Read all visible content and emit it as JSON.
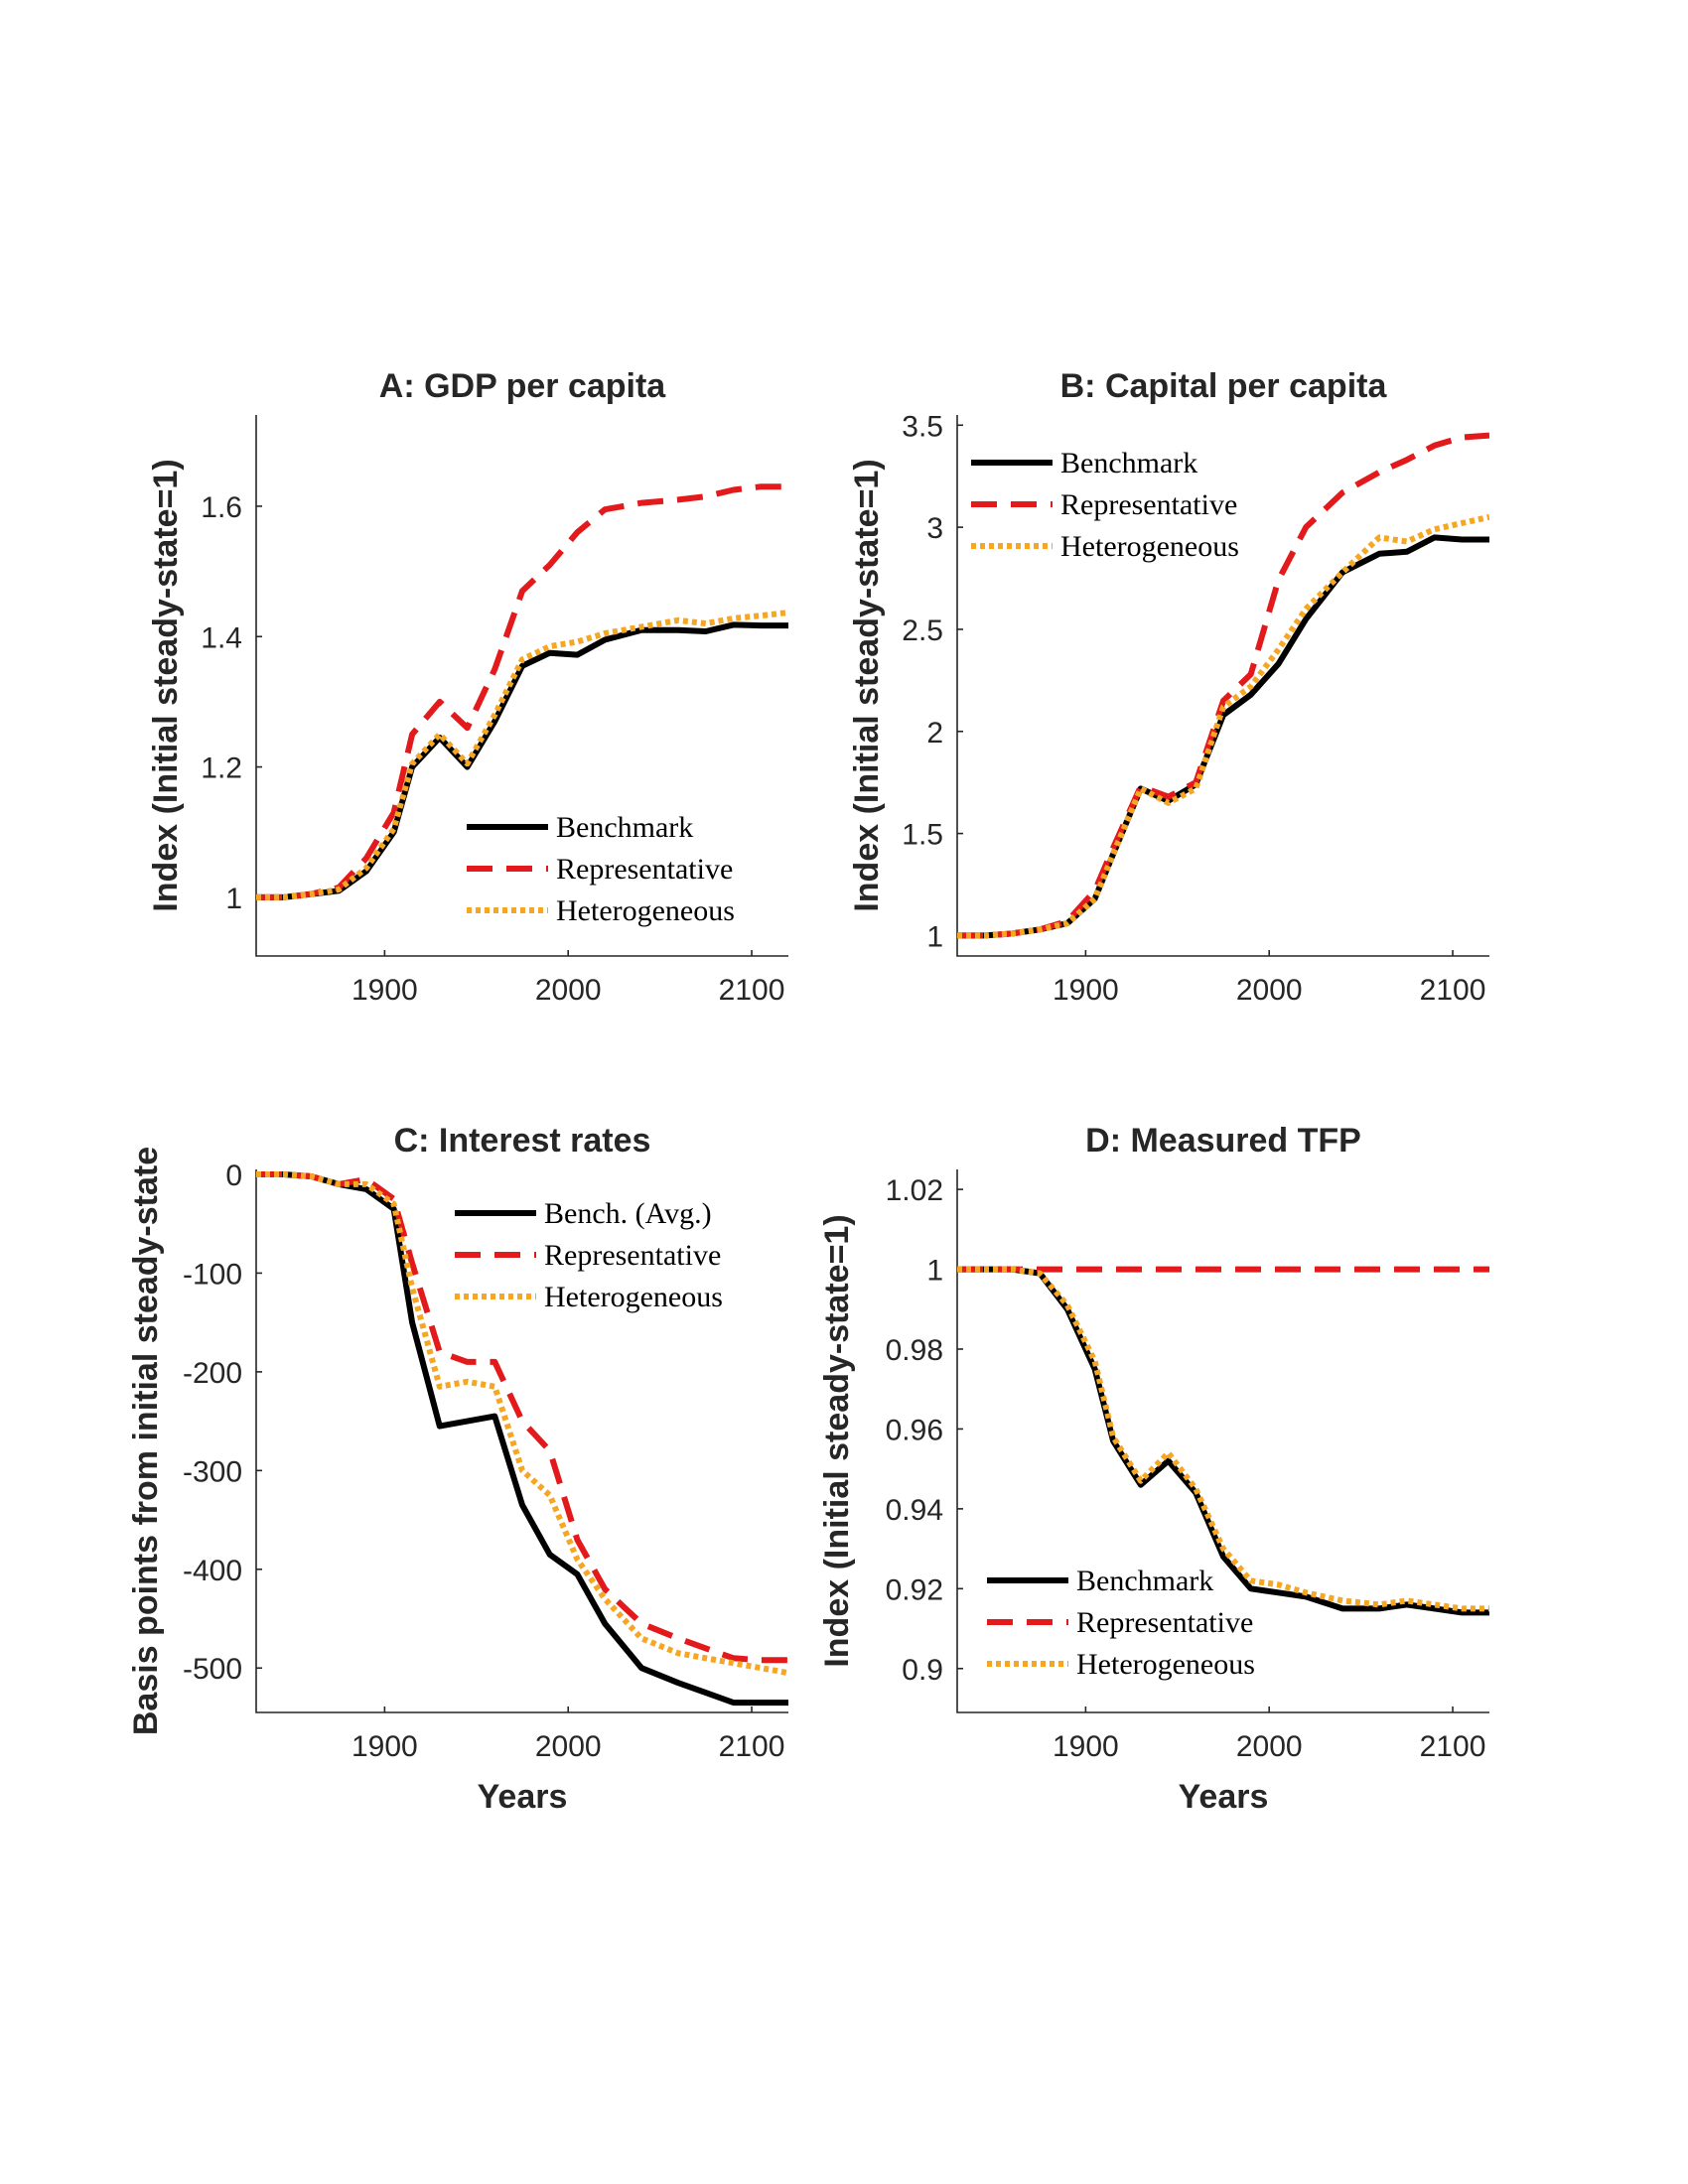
{
  "chart_data": [
    {
      "type": "line",
      "title": "A: GDP per capita",
      "xlabel": "",
      "ylabel": "Index (Initial steady-state=1)",
      "xlim": [
        1830,
        2120
      ],
      "ylim": [
        0.91,
        1.74
      ],
      "xticks": [
        1900,
        2000,
        2100
      ],
      "yticks": [
        1,
        1.2,
        1.4,
        1.6
      ],
      "ytick_labels": [
        "1",
        "1.2",
        "1.4",
        "1.6"
      ],
      "legend_position": "lower-right",
      "x": [
        1830,
        1845,
        1860,
        1875,
        1890,
        1905,
        1915,
        1930,
        1945,
        1960,
        1975,
        1990,
        2005,
        2020,
        2040,
        2060,
        2075,
        2090,
        2105,
        2120
      ],
      "series": [
        {
          "name": "Benchmark",
          "color": "#000000",
          "style": "solid",
          "values": [
            1.0,
            1.0,
            1.005,
            1.01,
            1.04,
            1.1,
            1.2,
            1.245,
            1.2,
            1.27,
            1.355,
            1.375,
            1.372,
            1.395,
            1.41,
            1.41,
            1.408,
            1.418,
            1.417,
            1.417
          ]
        },
        {
          "name": "Representative",
          "color": "#e31a1c",
          "style": "dashed",
          "values": [
            1.0,
            1.0,
            1.005,
            1.015,
            1.06,
            1.13,
            1.25,
            1.3,
            1.26,
            1.35,
            1.47,
            1.51,
            1.56,
            1.595,
            1.605,
            1.61,
            1.615,
            1.625,
            1.63,
            1.63
          ]
        },
        {
          "name": "Heterogeneous",
          "color": "#f5a623",
          "style": "dotted",
          "values": [
            1.0,
            1.0,
            1.005,
            1.012,
            1.045,
            1.105,
            1.205,
            1.25,
            1.205,
            1.28,
            1.365,
            1.385,
            1.392,
            1.405,
            1.415,
            1.425,
            1.42,
            1.428,
            1.432,
            1.437
          ]
        }
      ]
    },
    {
      "type": "line",
      "title": "B: Capital per capita",
      "xlabel": "",
      "ylabel": "Index (Initial steady-state=1)",
      "xlim": [
        1830,
        2120
      ],
      "ylim": [
        0.9,
        3.55
      ],
      "xticks": [
        1900,
        2000,
        2100
      ],
      "yticks": [
        1,
        1.5,
        2,
        2.5,
        3,
        3.5
      ],
      "ytick_labels": [
        "1",
        "1.5",
        "2",
        "2.5",
        "3",
        "3.5"
      ],
      "legend_position": "upper-left",
      "x": [
        1830,
        1845,
        1860,
        1875,
        1890,
        1905,
        1915,
        1930,
        1945,
        1960,
        1975,
        1990,
        2005,
        2020,
        2040,
        2060,
        2075,
        2090,
        2105,
        2120
      ],
      "series": [
        {
          "name": "Benchmark",
          "color": "#000000",
          "style": "solid",
          "values": [
            1.0,
            1.0,
            1.01,
            1.03,
            1.06,
            1.18,
            1.4,
            1.72,
            1.66,
            1.74,
            2.08,
            2.18,
            2.33,
            2.55,
            2.78,
            2.87,
            2.88,
            2.95,
            2.94,
            2.94
          ]
        },
        {
          "name": "Representative",
          "color": "#e31a1c",
          "style": "dashed",
          "values": [
            1.0,
            1.0,
            1.01,
            1.03,
            1.07,
            1.22,
            1.43,
            1.73,
            1.68,
            1.75,
            2.15,
            2.28,
            2.74,
            3.0,
            3.17,
            3.27,
            3.33,
            3.4,
            3.44,
            3.45
          ]
        },
        {
          "name": "Heterogeneous",
          "color": "#f5a623",
          "style": "dotted",
          "values": [
            1.0,
            1.0,
            1.01,
            1.03,
            1.06,
            1.18,
            1.4,
            1.72,
            1.65,
            1.72,
            2.12,
            2.22,
            2.4,
            2.6,
            2.78,
            2.95,
            2.93,
            2.99,
            3.02,
            3.05
          ]
        }
      ]
    },
    {
      "type": "line",
      "title": "C: Interest rates",
      "xlabel": "Years",
      "ylabel": "Basis points from initial steady-state",
      "xlim": [
        1830,
        2120
      ],
      "ylim": [
        -545,
        5
      ],
      "xticks": [
        1900,
        2000,
        2100
      ],
      "yticks": [
        0,
        -100,
        -200,
        -300,
        -400,
        -500
      ],
      "ytick_labels": [
        "0",
        "-100",
        "-200",
        "-300",
        "-400",
        "-500"
      ],
      "legend_position": "upper-right",
      "x": [
        1830,
        1845,
        1860,
        1875,
        1890,
        1905,
        1915,
        1930,
        1945,
        1960,
        1975,
        1990,
        2005,
        2020,
        2040,
        2060,
        2075,
        2090,
        2105,
        2120
      ],
      "series": [
        {
          "name": "Bench. (Avg.)",
          "color": "#000000",
          "style": "solid",
          "values": [
            0,
            0,
            -2,
            -10,
            -15,
            -35,
            -150,
            -255,
            -250,
            -245,
            -335,
            -385,
            -405,
            -455,
            -500,
            -515,
            -525,
            -535,
            -535,
            -535
          ]
        },
        {
          "name": "Representative",
          "color": "#e31a1c",
          "style": "dashed",
          "values": [
            0,
            0,
            -2,
            -10,
            -5,
            -25,
            -90,
            -180,
            -190,
            -190,
            -250,
            -280,
            -370,
            -420,
            -455,
            -470,
            -480,
            -490,
            -492,
            -492
          ]
        },
        {
          "name": "Heterogeneous",
          "color": "#f5a623",
          "style": "dotted",
          "values": [
            0,
            0,
            -2,
            -10,
            -10,
            -30,
            -115,
            -215,
            -210,
            -215,
            -300,
            -325,
            -390,
            -430,
            -470,
            -485,
            -490,
            -495,
            -500,
            -505
          ]
        }
      ]
    },
    {
      "type": "line",
      "title": "D: Measured TFP",
      "xlabel": "Years",
      "ylabel": "Index (Initial steady-state=1)",
      "xlim": [
        1830,
        2120
      ],
      "ylim": [
        0.889,
        1.025
      ],
      "xticks": [
        1900,
        2000,
        2100
      ],
      "yticks": [
        0.9,
        0.92,
        0.94,
        0.96,
        0.98,
        1,
        1.02
      ],
      "ytick_labels": [
        "0.9",
        "0.92",
        "0.94",
        "0.96",
        "0.98",
        "1",
        "1.02"
      ],
      "legend_position": "lower-left",
      "x": [
        1830,
        1845,
        1860,
        1875,
        1890,
        1905,
        1915,
        1930,
        1945,
        1960,
        1975,
        1990,
        2005,
        2020,
        2040,
        2060,
        2075,
        2090,
        2105,
        2120
      ],
      "series": [
        {
          "name": "Benchmark",
          "color": "#000000",
          "style": "solid",
          "values": [
            1.0,
            1.0,
            1.0,
            0.999,
            0.99,
            0.975,
            0.957,
            0.946,
            0.952,
            0.944,
            0.928,
            0.92,
            0.919,
            0.918,
            0.915,
            0.915,
            0.916,
            0.915,
            0.914,
            0.914
          ]
        },
        {
          "name": "Representative",
          "color": "#e31a1c",
          "style": "dashed",
          "values": [
            1.0,
            1.0,
            1.0,
            1.0,
            1.0,
            1.0,
            1.0,
            1.0,
            1.0,
            1.0,
            1.0,
            1.0,
            1.0,
            1.0,
            1.0,
            1.0,
            1.0,
            1.0,
            1.0,
            1.0
          ]
        },
        {
          "name": "Heterogeneous",
          "color": "#f5a623",
          "style": "dotted",
          "values": [
            1.0,
            1.0,
            1.0,
            0.999,
            0.991,
            0.977,
            0.958,
            0.947,
            0.954,
            0.945,
            0.93,
            0.922,
            0.921,
            0.919,
            0.917,
            0.916,
            0.917,
            0.916,
            0.915,
            0.915
          ]
        }
      ]
    }
  ]
}
